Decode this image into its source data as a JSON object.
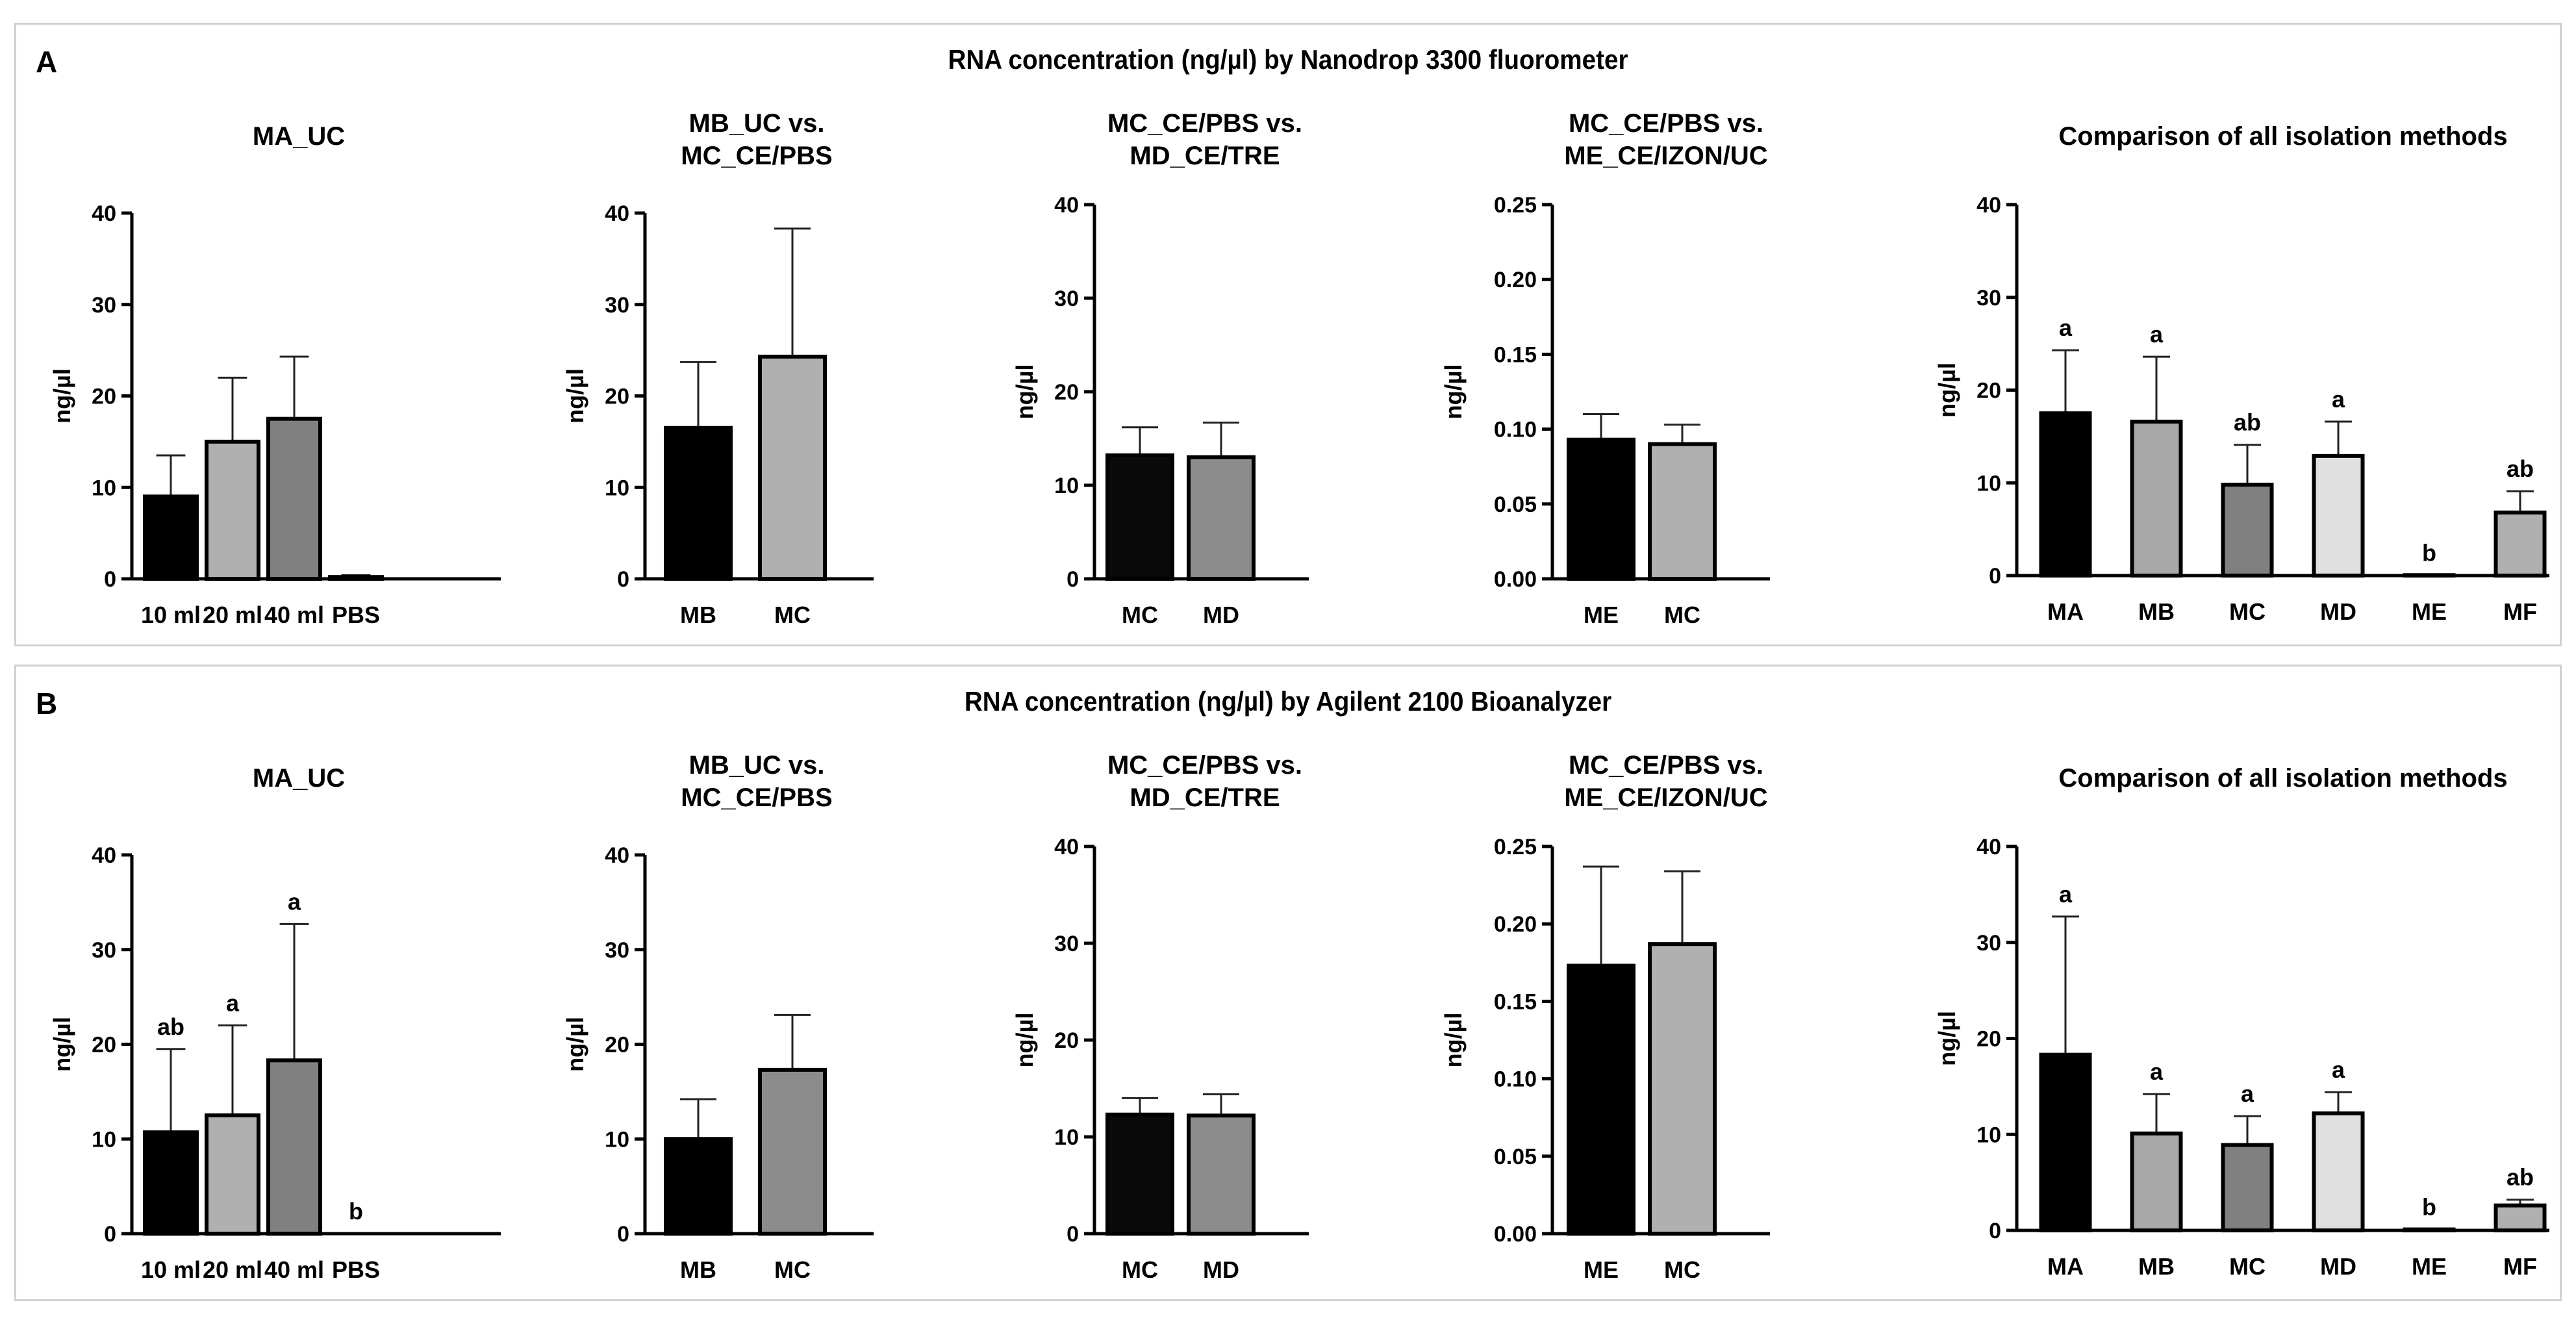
{
  "panels": [
    {
      "letter": "A",
      "title": "RNA concentration (ng/µl) by Nanodrop 3300 fluorometer",
      "charts": [
        {
          "type": "bar",
          "title": [
            "MA_UC"
          ],
          "ylabel": "ng/µl",
          "ylim": [
            0,
            40
          ],
          "yticks": [
            0,
            10,
            20,
            30,
            40
          ],
          "categories": [
            "10 ml",
            "20 ml",
            "40 ml",
            "PBS"
          ],
          "values": [
            9,
            15,
            17.5,
            0.2
          ],
          "errors": [
            4.5,
            7,
            6.8,
            0.2
          ],
          "colors": [
            "#000000",
            "#b0b0b0",
            "#808080",
            "#ffffff"
          ],
          "annotations": [
            "",
            "",
            "",
            ""
          ]
        },
        {
          "type": "bar",
          "title": [
            "MB_UC vs.",
            "MC_CE/PBS"
          ],
          "ylabel": "ng/µl",
          "ylim": [
            0,
            40
          ],
          "yticks": [
            0,
            10,
            20,
            30,
            40
          ],
          "categories": [
            "MB",
            "MC"
          ],
          "values": [
            16.5,
            24.3
          ],
          "errors": [
            7.2,
            14
          ],
          "colors": [
            "#000000",
            "#b0b0b0"
          ],
          "annotations": [
            "",
            ""
          ]
        },
        {
          "type": "bar",
          "title": [
            "MC_CE/PBS vs.",
            "MD_CE/TRE"
          ],
          "ylabel": "ng/µl",
          "ylim": [
            0,
            40
          ],
          "yticks": [
            0,
            10,
            20,
            30,
            40
          ],
          "categories": [
            "MC",
            "MD"
          ],
          "values": [
            13.2,
            13
          ],
          "errors": [
            3,
            3.7
          ],
          "colors": [
            "#0a0a0a",
            "#8c8c8c"
          ],
          "annotations": [
            "",
            ""
          ]
        },
        {
          "type": "bar",
          "title": [
            "MC_CE/PBS vs.",
            "ME_CE/IZON/UC"
          ],
          "ylabel": "ng/µl",
          "ylim": [
            0,
            0.25
          ],
          "yticks": [
            "0.00",
            "0.05",
            "0.10",
            "0.15",
            "0.20",
            "0.25"
          ],
          "categories": [
            "ME",
            "MC"
          ],
          "values": [
            0.093,
            0.09
          ],
          "errors": [
            0.017,
            0.013
          ],
          "colors": [
            "#000000",
            "#b0b0b0"
          ],
          "annotations": [
            "",
            ""
          ]
        },
        {
          "type": "bar",
          "title": [
            "Comparison of all isolation methods"
          ],
          "ylabel": "ng/µl",
          "ylim": [
            0,
            40
          ],
          "yticks": [
            0,
            10,
            20,
            30,
            40
          ],
          "categories": [
            "MA",
            "MB",
            "MC",
            "MD",
            "ME",
            "MF"
          ],
          "values": [
            17.5,
            16.6,
            9.8,
            12.9,
            0.05,
            6.8
          ],
          "errors": [
            6.8,
            7,
            4.3,
            3.7,
            0,
            2.3
          ],
          "colors": [
            "#000000",
            "#a8a8a8",
            "#808080",
            "#e0e0e0",
            "#ffffff",
            "#b0b0b0"
          ],
          "annotations": [
            "a",
            "a",
            "ab",
            "a",
            "b",
            "ab"
          ]
        }
      ]
    },
    {
      "letter": "B",
      "title": "RNA concentration (ng/µl) by Agilent 2100 Bioanalyzer",
      "charts": [
        {
          "type": "bar",
          "title": [
            "MA_UC"
          ],
          "ylabel": "ng/µl",
          "ylim": [
            0,
            40
          ],
          "yticks": [
            0,
            10,
            20,
            30,
            40
          ],
          "categories": [
            "10 ml",
            "20 ml",
            "40 ml",
            "PBS"
          ],
          "values": [
            10.7,
            12.5,
            18.3,
            0
          ],
          "errors": [
            8.8,
            9.5,
            14.4,
            0
          ],
          "colors": [
            "#000000",
            "#b0b0b0",
            "#808080",
            "#ffffff"
          ],
          "annotations": [
            "ab",
            "a",
            "a",
            "b"
          ]
        },
        {
          "type": "bar",
          "title": [
            "MB_UC vs.",
            "MC_CE/PBS"
          ],
          "ylabel": "ng/µl",
          "ylim": [
            0,
            40
          ],
          "yticks": [
            0,
            10,
            20,
            30,
            40
          ],
          "categories": [
            "MB",
            "MC"
          ],
          "values": [
            10,
            17.3
          ],
          "errors": [
            4.2,
            5.8
          ],
          "colors": [
            "#000000",
            "#8c8c8c"
          ],
          "annotations": [
            "",
            ""
          ]
        },
        {
          "type": "bar",
          "title": [
            "MC_CE/PBS vs.",
            "MD_CE/TRE"
          ],
          "ylabel": "ng/µl",
          "ylim": [
            0,
            40
          ],
          "yticks": [
            0,
            10,
            20,
            30,
            40
          ],
          "categories": [
            "MC",
            "MD"
          ],
          "values": [
            12.3,
            12.2
          ],
          "errors": [
            1.7,
            2.2
          ],
          "colors": [
            "#0a0a0a",
            "#8c8c8c"
          ],
          "annotations": [
            "",
            ""
          ]
        },
        {
          "type": "bar",
          "title": [
            "MC_CE/PBS vs.",
            "ME_CE/IZON/UC"
          ],
          "ylabel": "ng/µl",
          "ylim": [
            0,
            0.25
          ],
          "yticks": [
            "0.00",
            "0.05",
            "0.10",
            "0.15",
            "0.20",
            "0.25"
          ],
          "categories": [
            "ME",
            "MC"
          ],
          "values": [
            0.173,
            0.187
          ],
          "errors": [
            0.064,
            0.047
          ],
          "colors": [
            "#000000",
            "#b0b0b0"
          ],
          "annotations": [
            "",
            ""
          ]
        },
        {
          "type": "bar",
          "title": [
            "Comparison of all isolation methods"
          ],
          "ylabel": "ng/µl",
          "ylim": [
            0,
            40
          ],
          "yticks": [
            0,
            10,
            20,
            30,
            40
          ],
          "categories": [
            "MA",
            "MB",
            "MC",
            "MD",
            "ME",
            "MF"
          ],
          "values": [
            18.3,
            10.1,
            8.9,
            12.2,
            0.1,
            2.6
          ],
          "errors": [
            14.4,
            4.1,
            3,
            2.2,
            0,
            0.6
          ],
          "colors": [
            "#000000",
            "#a8a8a8",
            "#808080",
            "#e0e0e0",
            "#ffffff",
            "#b0b0b0"
          ],
          "annotations": [
            "a",
            "a",
            "a",
            "a",
            "b",
            "ab"
          ]
        }
      ]
    }
  ]
}
